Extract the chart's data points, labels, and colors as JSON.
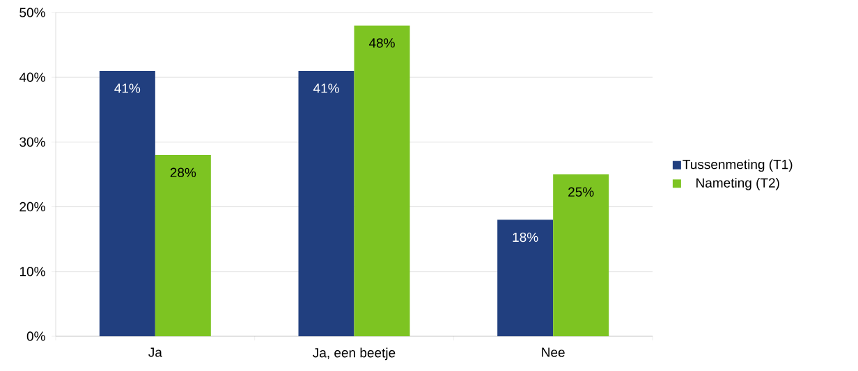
{
  "chart_data": {
    "type": "bar",
    "categories": [
      "Ja",
      "Ja, een beetje",
      "Nee"
    ],
    "series": [
      {
        "name": "Tussenmeting (T1)",
        "color": "#213f7f",
        "values": [
          41,
          41,
          18
        ],
        "value_labels": [
          "41%",
          "41%",
          "18%"
        ]
      },
      {
        "name": "Nameting (T2)",
        "color": "#7dc422",
        "values": [
          28,
          48,
          25
        ],
        "value_labels": [
          "28%",
          "48%",
          "25%"
        ]
      }
    ],
    "ylim": [
      0,
      50
    ],
    "yticks": [
      {
        "value": 0,
        "label": "0%"
      },
      {
        "value": 10,
        "label": "10%"
      },
      {
        "value": 20,
        "label": "20%"
      },
      {
        "value": 30,
        "label": "30%"
      },
      {
        "value": 40,
        "label": "40%"
      },
      {
        "value": 50,
        "label": "50%"
      }
    ],
    "grid": "y",
    "legend": "right"
  }
}
